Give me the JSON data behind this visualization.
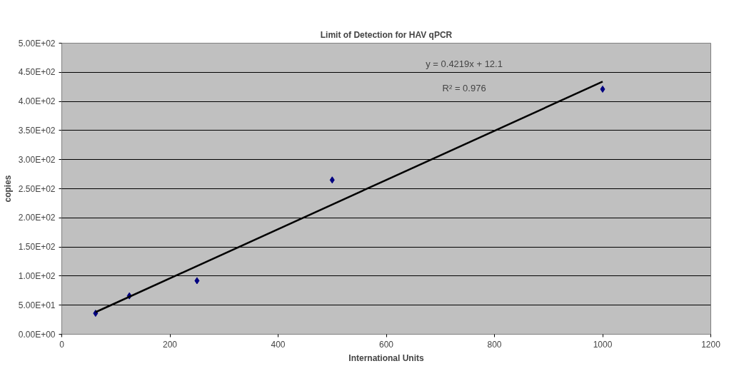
{
  "chart_data": {
    "type": "scatter",
    "title": "Limit of Detection for HAV qPCR",
    "xlabel": "International Units",
    "ylabel": "copies",
    "x": [
      62.5,
      125,
      250,
      500,
      1000
    ],
    "series": [
      {
        "color": "#000080",
        "marker": "diamond",
        "values": [
          36,
          66,
          92,
          265,
          421
        ]
      },
      {
        "type": "line",
        "color": "#000000",
        "x": [
          62.5,
          1000
        ],
        "values": [
          38,
          434
        ],
        "marker": "none",
        "line_style": "solid"
      }
    ],
    "annotations": [
      "y = 0.4219x + 12.1",
      "R² = 0.976"
    ],
    "xlim": [
      0,
      1200
    ],
    "xticks": [
      0,
      200,
      400,
      600,
      800,
      1000,
      1200
    ],
    "ylim": [
      0,
      500
    ],
    "yticks": [
      {
        "value": 0,
        "label": "0.00E+00"
      },
      {
        "value": 50,
        "label": "5.00E+01"
      },
      {
        "value": 100,
        "label": "1.00E+02"
      },
      {
        "value": 150,
        "label": "1.50E+02"
      },
      {
        "value": 200,
        "label": "2.00E+02"
      },
      {
        "value": 250,
        "label": "2.50E+02"
      },
      {
        "value": 300,
        "label": "3.00E+02"
      },
      {
        "value": 350,
        "label": "3.50E+02"
      },
      {
        "value": 400,
        "label": "4.00E+02"
      },
      {
        "value": 450,
        "label": "4.50E+02"
      },
      {
        "value": 500,
        "label": "5.00E+02"
      }
    ],
    "grid": "y"
  }
}
